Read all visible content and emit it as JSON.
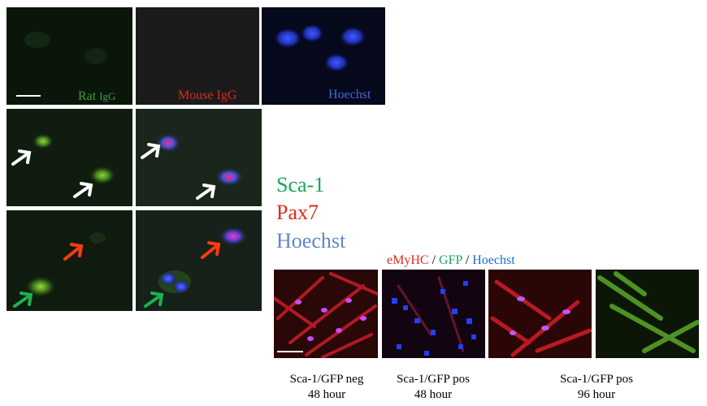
{
  "top_row": {
    "rat_igg": {
      "label": "Rat ",
      "label_small": "IgG",
      "color": "#3f9a3f"
    },
    "mouse_igg": {
      "label": "Mouse IgG",
      "color": "#e02a1e"
    },
    "hoechst": {
      "label": "Hoechst",
      "color": "#3d6ed8"
    }
  },
  "legend": {
    "sca1": {
      "label": "Sca-1",
      "color": "#1aa55a"
    },
    "pax7": {
      "label": "Pax7",
      "color": "#e8271c"
    },
    "hoechst": {
      "label": "Hoechst",
      "color": "#5f86cc"
    }
  },
  "stain_header": {
    "emyhc": "eMyHC",
    "sep1": " / ",
    "gfp": "GFP",
    "sep2": " / ",
    "hoechst": "Hoechst",
    "emyhc_color": "#e02a1e",
    "gfp_color": "#1aa55a",
    "hoechst_color": "#1a6ad0"
  },
  "captions": [
    {
      "line1": "Sca-1/GFP neg",
      "line2": "48 hour"
    },
    {
      "line1": "Sca-1/GFP pos",
      "line2": "48 hour"
    },
    {
      "line1": "Sca-1/GFP pos",
      "line2": "96 hour"
    }
  ],
  "arrow_colors": {
    "white": "#ffffff",
    "red": "#ff3a12",
    "green": "#1fb050"
  }
}
